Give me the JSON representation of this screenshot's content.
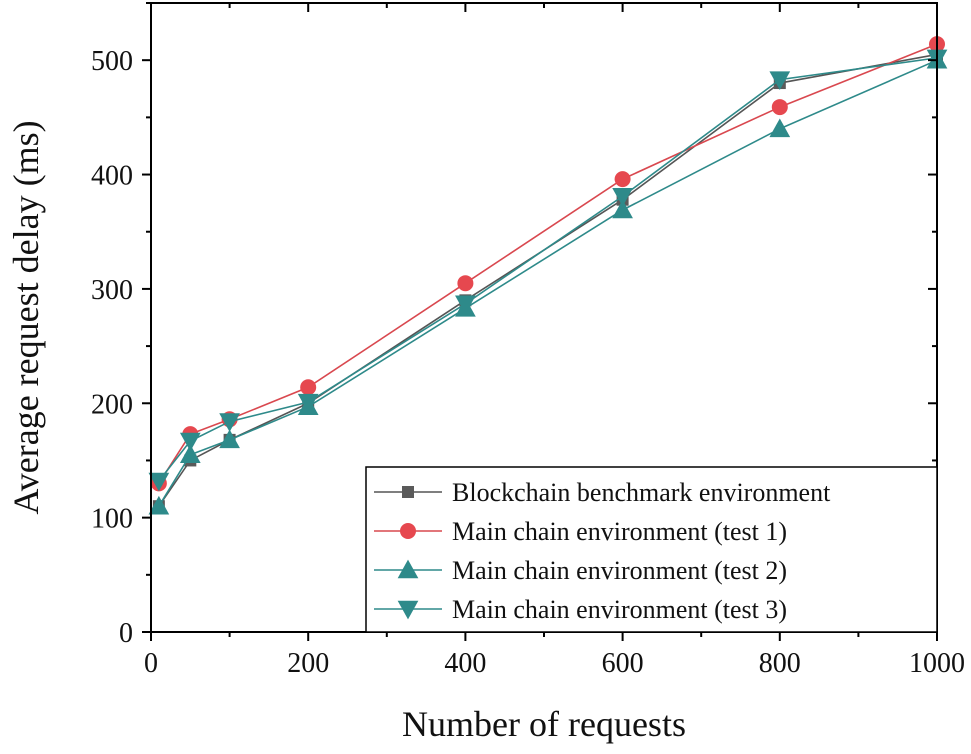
{
  "chart_data": {
    "type": "line",
    "xlabel": "Number of requests",
    "ylabel": "Average request delay (ms)",
    "xlim": [
      0,
      1000
    ],
    "ylim": [
      0,
      550
    ],
    "x_ticks": [
      0,
      200,
      400,
      600,
      800,
      1000
    ],
    "y_ticks": [
      0,
      100,
      200,
      300,
      400,
      500
    ],
    "grid": false,
    "legend_position": "bottom-right",
    "x": [
      10,
      50,
      100,
      200,
      400,
      600,
      800,
      1000
    ],
    "series": [
      {
        "name": "Blockchain benchmark environment",
        "marker": "square",
        "line_color": "#555555",
        "marker_color": "#5a5a5a",
        "values": [
          110,
          150,
          168,
          200,
          290,
          378,
          480,
          505
        ]
      },
      {
        "name": "Main chain environment (test 1)",
        "marker": "circle",
        "line_color": "#d9484f",
        "marker_color": "#e6484f",
        "values": [
          130,
          173,
          186,
          214,
          305,
          396,
          459,
          514
        ]
      },
      {
        "name": "Main chain environment (test 2)",
        "marker": "triangle-up",
        "line_color": "#2e8a8a",
        "marker_color": "#2e8a8a",
        "values": [
          110,
          155,
          168,
          197,
          283,
          369,
          440,
          500
        ]
      },
      {
        "name": "Main chain environment (test 3)",
        "marker": "triangle-down",
        "line_color": "#2e8a8a",
        "marker_color": "#2e8a8a",
        "values": [
          132,
          167,
          184,
          201,
          287,
          381,
          483,
          502
        ]
      }
    ]
  }
}
